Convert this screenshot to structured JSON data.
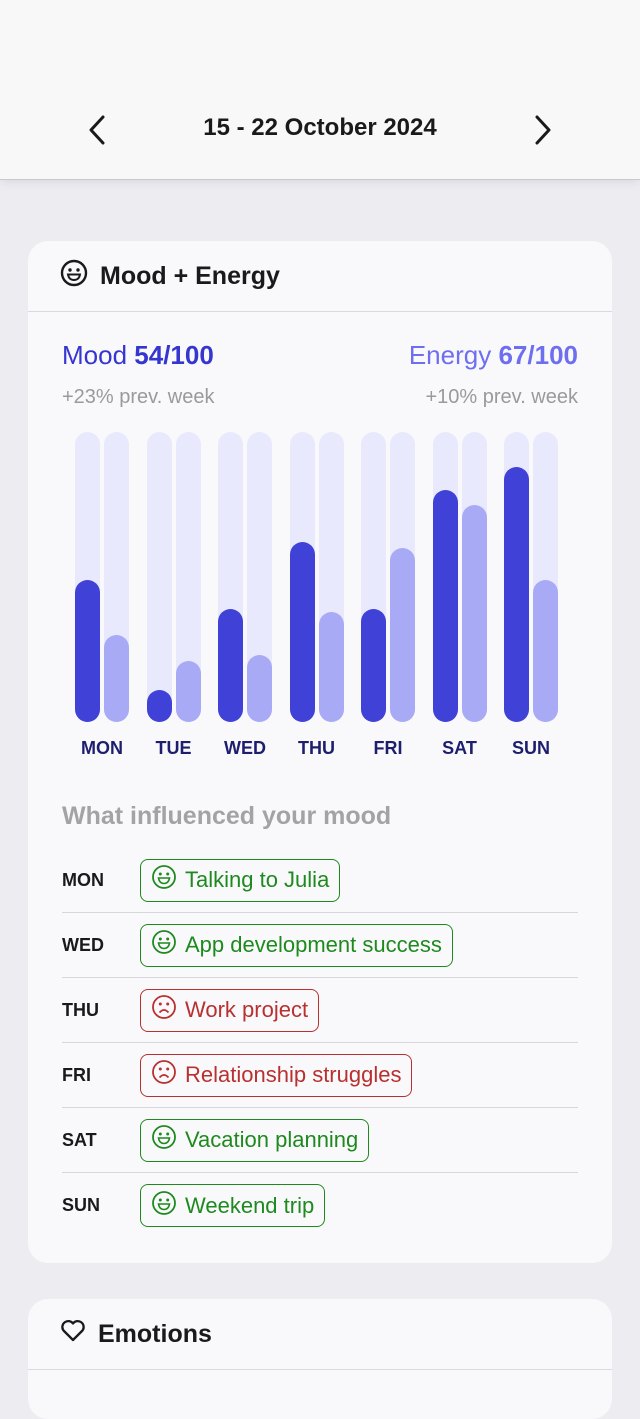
{
  "header": {
    "date_range": "15 - 22 October 2024",
    "prev": "chevron-left-icon",
    "next": "chevron-right-icon"
  },
  "mood_energy": {
    "title": "Mood + Energy",
    "mood_label": "Mood",
    "mood_value": "54/100",
    "mood_change": "+23% prev. week",
    "energy_label": "Energy",
    "energy_value": "67/100",
    "energy_change": "+10% prev. week",
    "colors": {
      "mood": "#4041d6",
      "energy": "#a9aaf5",
      "track": "#e9e9fd"
    },
    "chart_data": {
      "type": "bar",
      "categories": [
        "MON",
        "TUE",
        "WED",
        "THU",
        "FRI",
        "SAT",
        "SUN"
      ],
      "ylim": [
        0,
        100
      ],
      "series": [
        {
          "name": "Mood",
          "values": [
            49,
            11,
            39,
            62,
            39,
            80,
            88
          ]
        },
        {
          "name": "Energy",
          "values": [
            30,
            21,
            23,
            38,
            60,
            75,
            49
          ]
        }
      ]
    },
    "influence_title": "What influenced your mood",
    "influences": [
      {
        "day": "MON",
        "text": "Talking to Julia",
        "sentiment": "positive"
      },
      {
        "day": "WED",
        "text": "App development success",
        "sentiment": "positive"
      },
      {
        "day": "THU",
        "text": "Work project",
        "sentiment": "negative"
      },
      {
        "day": "FRI",
        "text": "Relationship struggles",
        "sentiment": "negative"
      },
      {
        "day": "SAT",
        "text": "Vacation planning",
        "sentiment": "positive"
      },
      {
        "day": "SUN",
        "text": "Weekend trip",
        "sentiment": "positive"
      }
    ],
    "sentiment_colors": {
      "positive": "#1e8a1e",
      "negative": "#b8302f"
    }
  },
  "emotions": {
    "title": "Emotions"
  }
}
